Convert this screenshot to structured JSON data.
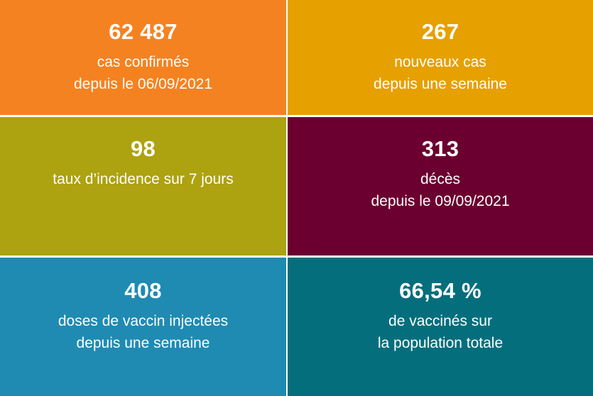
{
  "tiles": [
    {
      "value": "62 487",
      "line1": "cas confirmés",
      "line2": "depuis le 06/09/2021",
      "color": "#F58220"
    },
    {
      "value": "267",
      "line1": "nouveaux cas",
      "line2": "depuis une semaine",
      "color": "#E6A000"
    },
    {
      "value": "98",
      "line1": "taux d’incidence sur 7 jours",
      "line2": "",
      "color": "#ADA20F"
    },
    {
      "value": "313",
      "line1": "décès",
      "line2": "depuis le 09/09/2021",
      "color": "#6B0030"
    },
    {
      "value": "408",
      "line1": "doses de vaccin injectées",
      "line2": "depuis une semaine",
      "color": "#1F8BB2"
    },
    {
      "value": "66,54 %",
      "line1": "de vaccinés sur",
      "line2": "la population totale",
      "color": "#056E7C"
    }
  ]
}
